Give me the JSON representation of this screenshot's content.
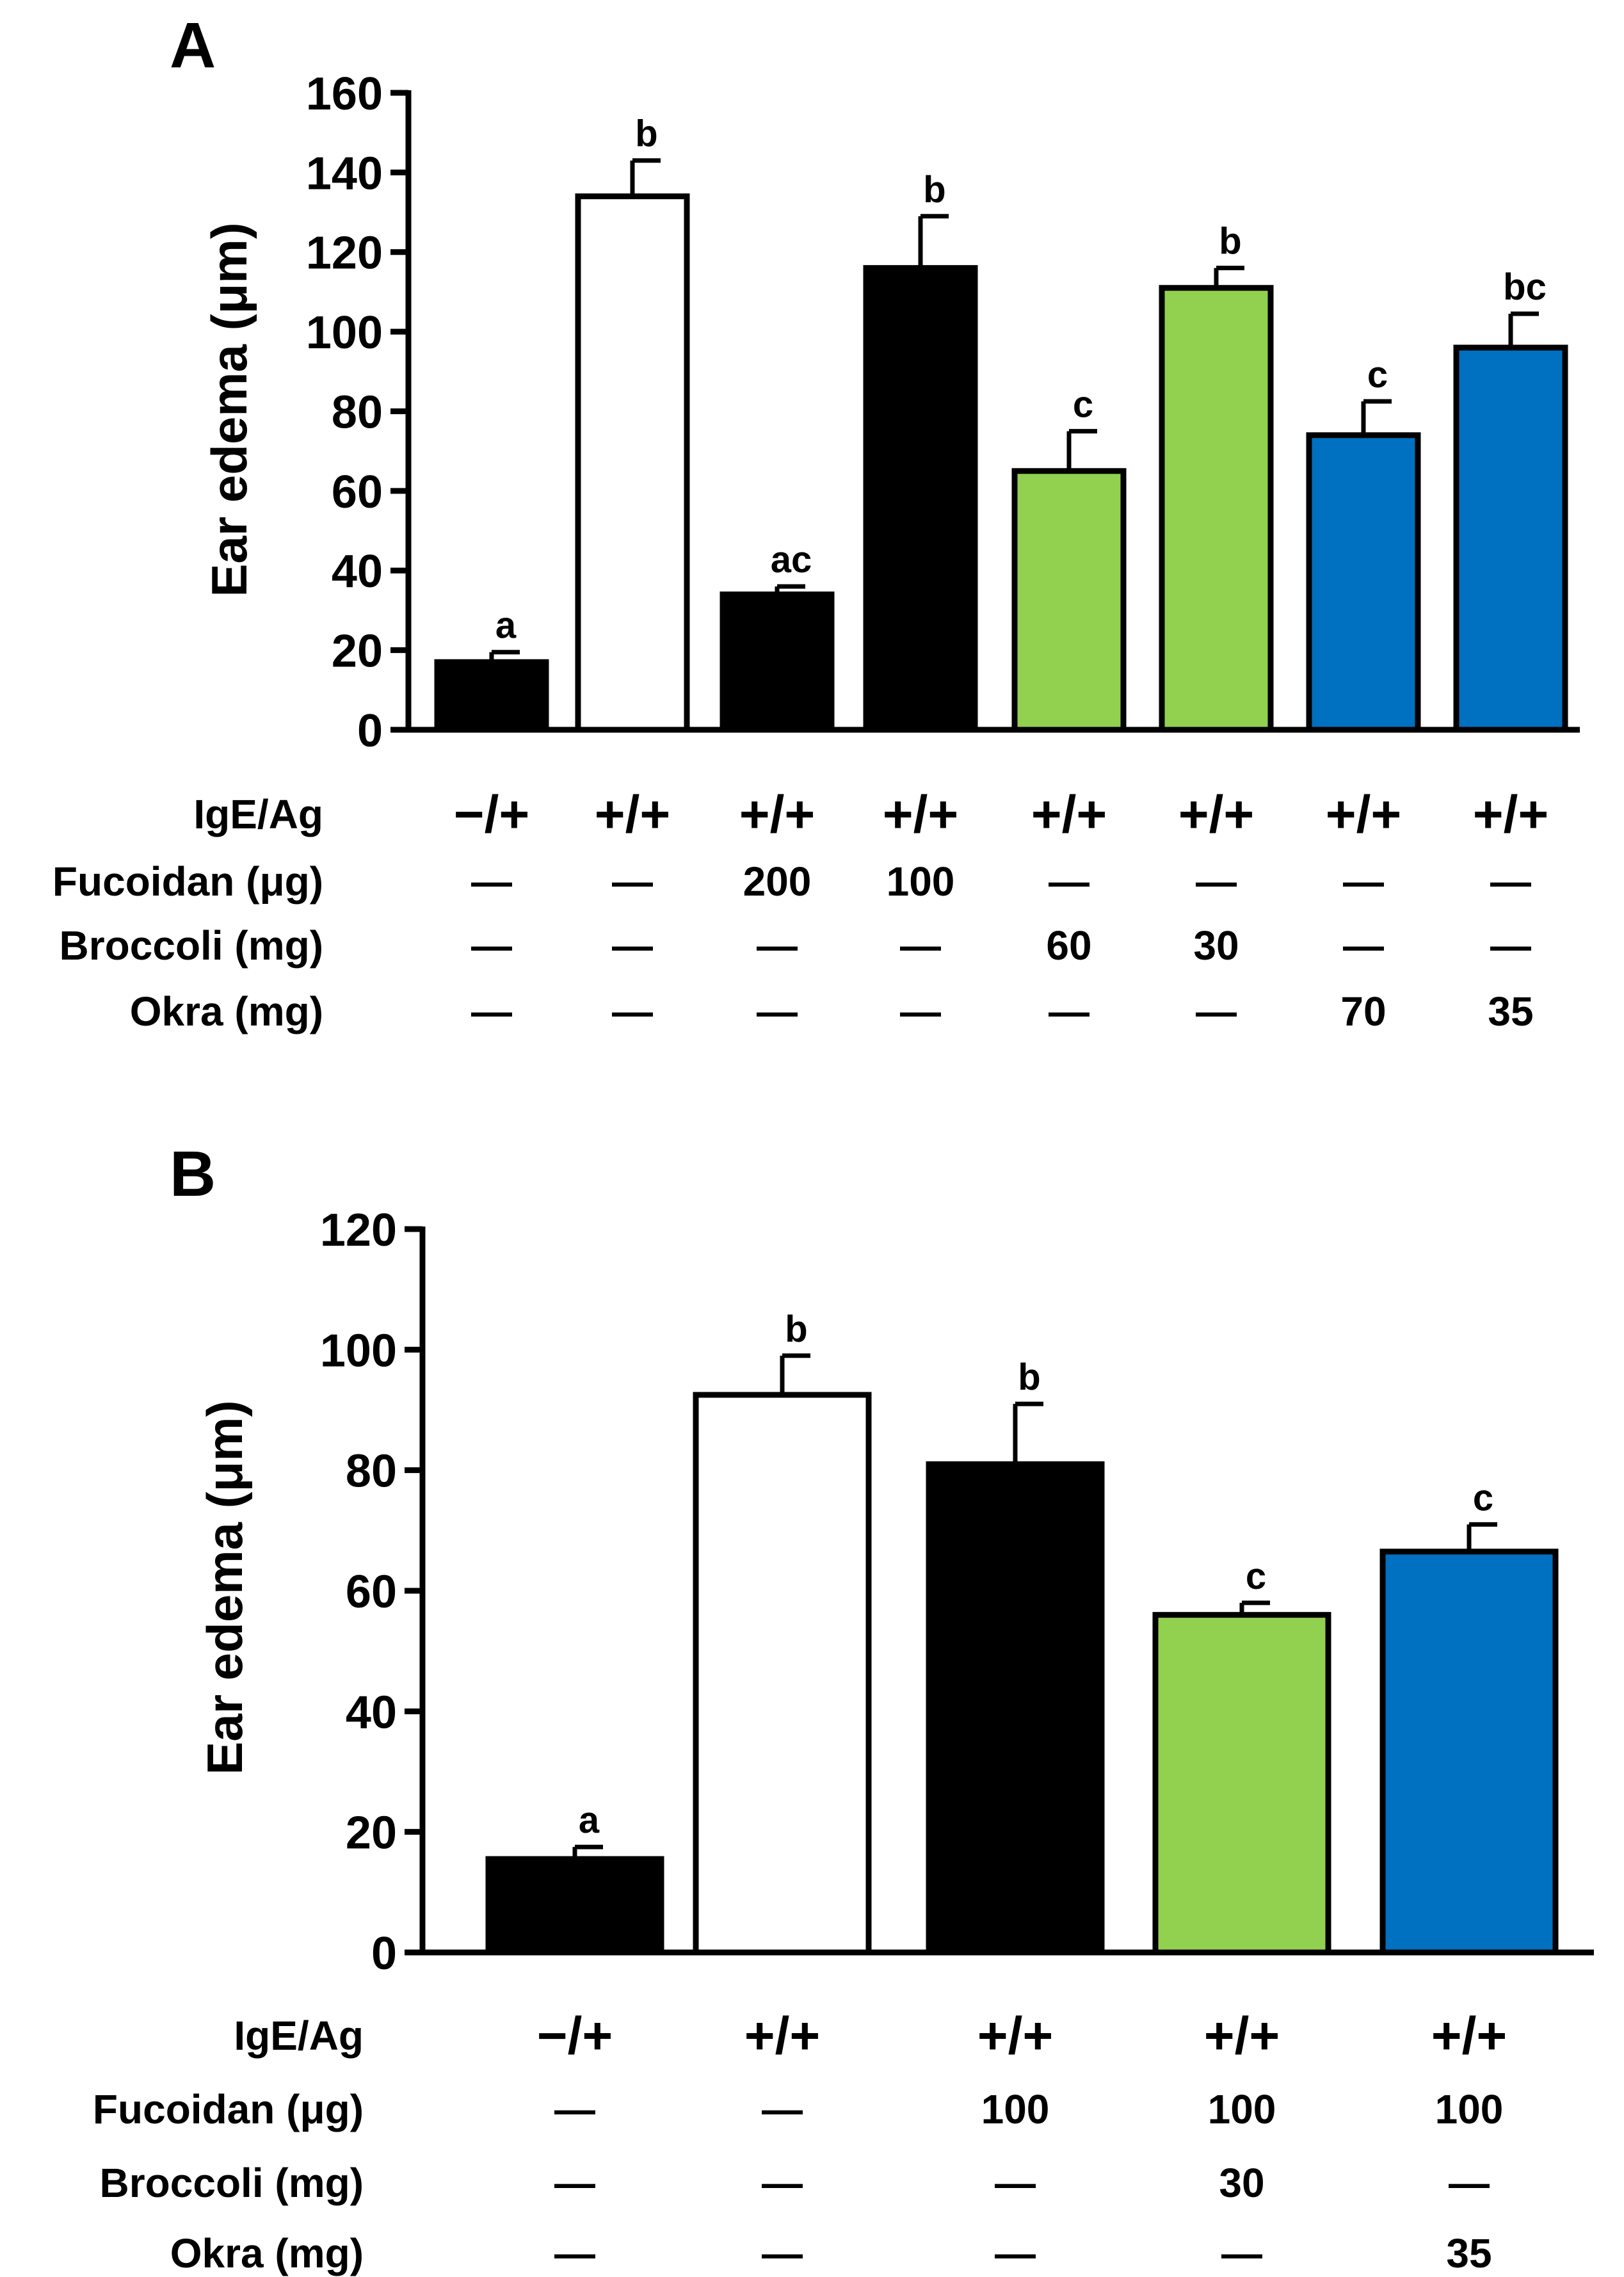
{
  "chart_data": [
    {
      "panel_label": "A",
      "type": "bar",
      "ylabel": "Ear edema (μm)",
      "ylim": [
        0,
        160
      ],
      "yticks": [
        "0",
        "20",
        "40",
        "60",
        "80",
        "100",
        "120",
        "140",
        "160"
      ],
      "values": [
        17,
        134,
        34,
        116,
        65,
        111,
        74,
        96
      ],
      "errors": [
        2.5,
        9,
        2,
        13,
        10,
        5,
        8.5,
        8.5
      ],
      "significance": [
        "a",
        "b",
        "ac",
        "b",
        "c",
        "b",
        "c",
        "bc"
      ],
      "bar_colors": [
        "#000000",
        "#ffffff",
        "#000000",
        "#000000",
        "#92d050",
        "#92d050",
        "#0070c0",
        "#0070c0"
      ],
      "treatments": [
        {
          "label": "IgE/Ag",
          "values": [
            "−/+",
            "+/+",
            "+/+",
            "+/+",
            "+/+",
            "+/+",
            "+/+",
            "+/+"
          ]
        },
        {
          "label": "Fucoidan (μg)",
          "values": [
            "—",
            "—",
            "200",
            "100",
            "—",
            "—",
            "—",
            "—"
          ]
        },
        {
          "label": "Broccoli (mg)",
          "values": [
            "—",
            "—",
            "—",
            "—",
            "60",
            "30",
            "—",
            "—"
          ]
        },
        {
          "label": "Okra (mg)",
          "values": [
            "—",
            "—",
            "—",
            "—",
            "—",
            "—",
            "70",
            "35"
          ]
        }
      ]
    },
    {
      "panel_label": "B",
      "type": "bar",
      "ylabel": "Ear edema (μm)",
      "ylim": [
        0,
        120
      ],
      "yticks": [
        "0",
        "20",
        "40",
        "60",
        "80",
        "100",
        "120"
      ],
      "values": [
        15.5,
        92.5,
        81,
        56,
        66.5
      ],
      "errors": [
        2,
        6.5,
        10,
        2,
        4.5
      ],
      "significance": [
        "a",
        "b",
        "b",
        "c",
        "c"
      ],
      "bar_colors": [
        "#000000",
        "#ffffff",
        "#000000",
        "#92d050",
        "#0070c0"
      ],
      "treatments": [
        {
          "label": "IgE/Ag",
          "values": [
            "−/+",
            "+/+",
            "+/+",
            "+/+",
            "+/+"
          ]
        },
        {
          "label": "Fucoidan (μg)",
          "values": [
            "—",
            "—",
            "100",
            "100",
            "100"
          ]
        },
        {
          "label": "Broccoli (mg)",
          "values": [
            "—",
            "—",
            "—",
            "30",
            "—"
          ]
        },
        {
          "label": "Okra (mg)",
          "values": [
            "—",
            "—",
            "—",
            "—",
            "35"
          ]
        }
      ]
    }
  ]
}
